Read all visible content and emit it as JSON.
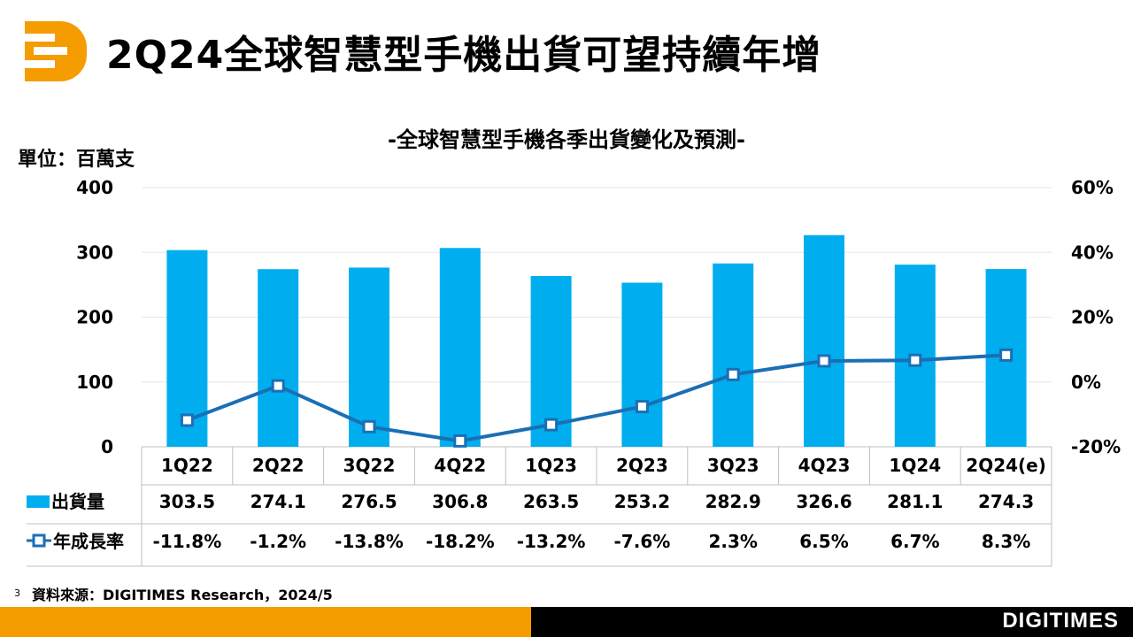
{
  "header": {
    "title": "2Q24全球智慧型手機出貨可望持續年增"
  },
  "brand": {
    "name": "DIGITIMES",
    "accent": "#f59c00"
  },
  "footer": {
    "page_number": "3",
    "source": "資料來源：DIGITIMES Research，2024/5"
  },
  "chart_data": {
    "type": "bar",
    "title": "-全球智慧型手機各季出貨變化及預測-",
    "unit_label": "單位：百萬支",
    "categories": [
      "1Q22",
      "2Q22",
      "3Q22",
      "4Q22",
      "1Q23",
      "2Q23",
      "3Q23",
      "4Q23",
      "1Q24",
      "2Q24(e)"
    ],
    "ylim": [
      0,
      400
    ],
    "y_ticks": [
      "0",
      "100",
      "200",
      "300",
      "400"
    ],
    "y2lim": [
      -20,
      60
    ],
    "y2_ticks": [
      "-20%",
      "0%",
      "20%",
      "40%",
      "60%"
    ],
    "series": [
      {
        "name": "出貨量",
        "type": "bar",
        "axis": "left",
        "color": "#00aeef",
        "values": [
          303.5,
          274.1,
          276.5,
          306.8,
          263.5,
          253.2,
          282.9,
          326.6,
          281.1,
          274.3
        ],
        "labels": [
          "303.5",
          "274.1",
          "276.5",
          "306.8",
          "263.5",
          "253.2",
          "282.9",
          "326.6",
          "281.1",
          "274.3"
        ]
      },
      {
        "name": "年成長率",
        "type": "line",
        "axis": "right",
        "color": "#1a6fb5",
        "values": [
          -11.8,
          -1.2,
          -13.8,
          -18.2,
          -13.2,
          -7.6,
          2.3,
          6.5,
          6.7,
          8.3
        ],
        "labels": [
          "-11.8%",
          "-1.2%",
          "-13.8%",
          "-18.2%",
          "-13.2%",
          "-7.6%",
          "2.3%",
          "6.5%",
          "6.7%",
          "8.3%"
        ]
      }
    ]
  }
}
